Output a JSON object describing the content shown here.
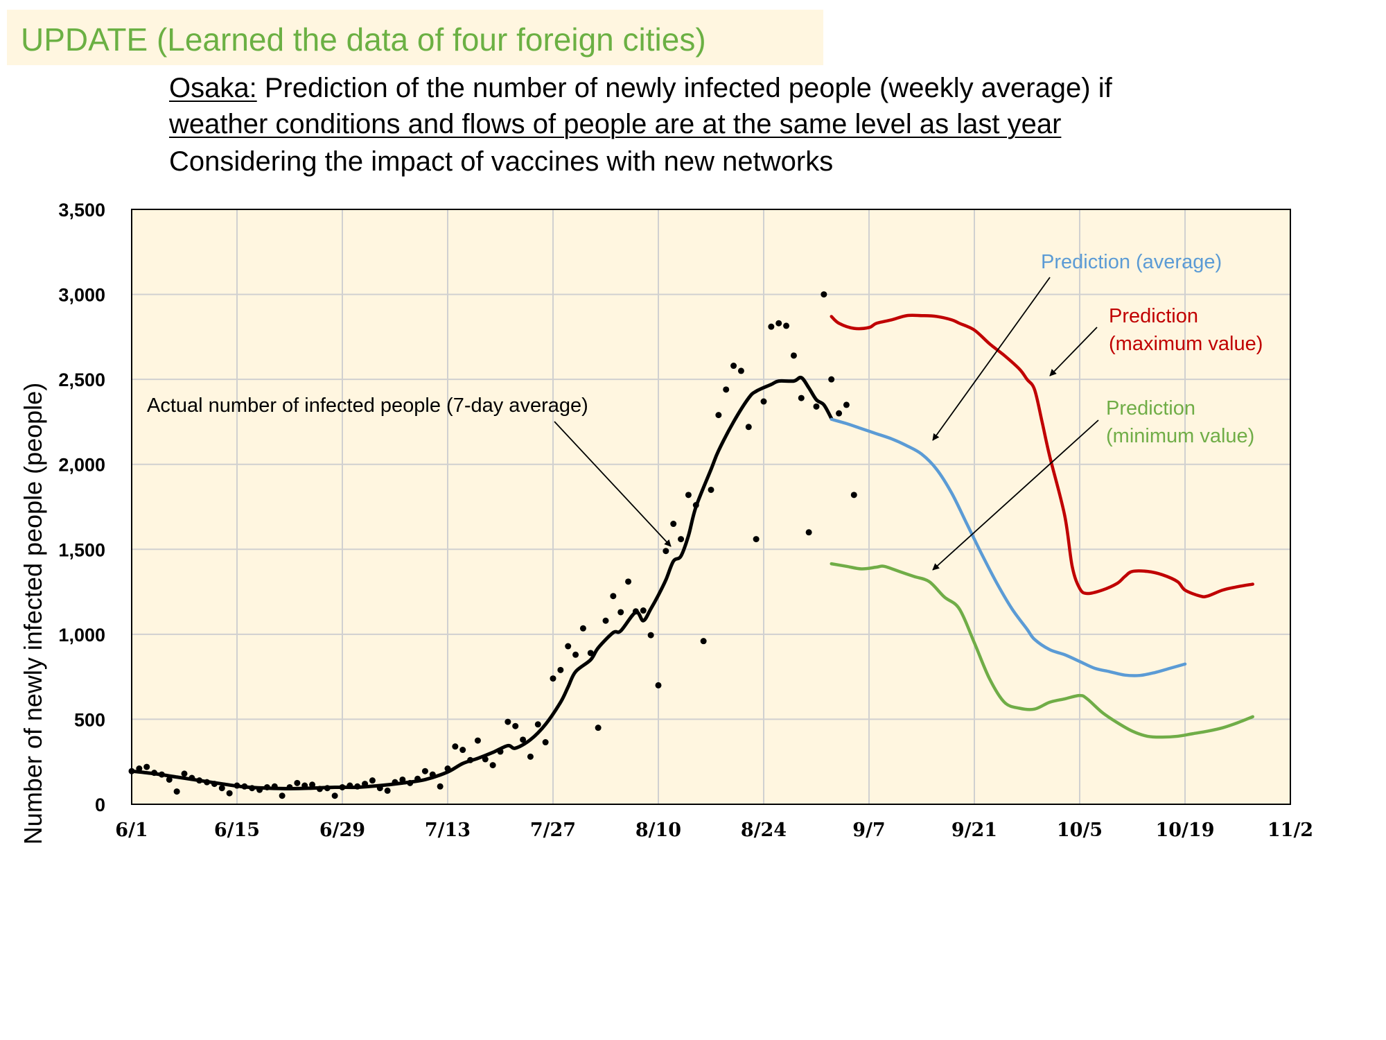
{
  "banner": {
    "text": "UPDATE (Learned the data of four foreign cities)"
  },
  "subtitle": {
    "line1_prefix": "Osaka:",
    "line1_rest": " Prediction of the number of newly infected people (weekly average) if",
    "line2": "weather conditions and flows of people are at the same level as last year",
    "line3": "Considering the impact of vaccines with new networks"
  },
  "colors": {
    "actual": "#000000",
    "average": "#5b9bd5",
    "maximum": "#c00000",
    "minimum": "#70ad47",
    "plot_bg": "#fff6e0",
    "grid": "#d0d0d0"
  },
  "chart_data": {
    "type": "line",
    "x_ticks": [
      "6/1",
      "6/15",
      "6/29",
      "7/13",
      "7/27",
      "8/10",
      "8/24",
      "9/7",
      "9/21",
      "10/5",
      "10/19",
      "11/2"
    ],
    "y_ticks": [
      "0",
      "500",
      "1,000",
      "1,500",
      "2,000",
      "2,500",
      "3,000",
      "3,500"
    ],
    "ylabel": "Number of newly infected people (people)",
    "xlim_days": [
      0,
      154
    ],
    "ylim": [
      0,
      3500
    ],
    "grid": true,
    "annotations": [
      {
        "text": "Actual number of infected people (7-day average)",
        "series": "actual"
      },
      {
        "text": "Prediction (average)",
        "series": "average"
      },
      {
        "text": [
          "Prediction",
          "(maximum value)"
        ],
        "series": "maximum"
      },
      {
        "text": [
          "Prediction",
          "(minimum value)"
        ],
        "series": "minimum"
      }
    ],
    "daily_points": [
      [
        0,
        195
      ],
      [
        1,
        210
      ],
      [
        2,
        220
      ],
      [
        3,
        185
      ],
      [
        4,
        175
      ],
      [
        5,
        145
      ],
      [
        6,
        75
      ],
      [
        7,
        180
      ],
      [
        8,
        155
      ],
      [
        9,
        140
      ],
      [
        10,
        130
      ],
      [
        11,
        120
      ],
      [
        12,
        95
      ],
      [
        13,
        65
      ],
      [
        14,
        110
      ],
      [
        15,
        105
      ],
      [
        16,
        95
      ],
      [
        17,
        85
      ],
      [
        18,
        100
      ],
      [
        19,
        105
      ],
      [
        20,
        50
      ],
      [
        21,
        100
      ],
      [
        22,
        125
      ],
      [
        23,
        110
      ],
      [
        24,
        115
      ],
      [
        25,
        90
      ],
      [
        26,
        95
      ],
      [
        27,
        50
      ],
      [
        28,
        100
      ],
      [
        29,
        110
      ],
      [
        30,
        105
      ],
      [
        31,
        120
      ],
      [
        32,
        140
      ],
      [
        33,
        95
      ],
      [
        34,
        80
      ],
      [
        35,
        130
      ],
      [
        36,
        145
      ],
      [
        37,
        125
      ],
      [
        38,
        150
      ],
      [
        39,
        195
      ],
      [
        40,
        175
      ],
      [
        41,
        105
      ],
      [
        42,
        210
      ],
      [
        43,
        340
      ],
      [
        44,
        320
      ],
      [
        45,
        260
      ],
      [
        46,
        375
      ],
      [
        47,
        265
      ],
      [
        48,
        230
      ],
      [
        49,
        310
      ],
      [
        50,
        485
      ],
      [
        51,
        460
      ],
      [
        52,
        380
      ],
      [
        53,
        280
      ],
      [
        54,
        470
      ],
      [
        55,
        365
      ],
      [
        56,
        740
      ],
      [
        57,
        790
      ],
      [
        58,
        930
      ],
      [
        59,
        880
      ],
      [
        60,
        1035
      ],
      [
        61,
        890
      ],
      [
        62,
        450
      ],
      [
        63,
        1080
      ],
      [
        64,
        1225
      ],
      [
        65,
        1130
      ],
      [
        66,
        1310
      ],
      [
        67,
        1135
      ],
      [
        68,
        1140
      ],
      [
        69,
        995
      ],
      [
        70,
        700
      ],
      [
        71,
        1490
      ],
      [
        72,
        1650
      ],
      [
        73,
        1560
      ],
      [
        74,
        1820
      ],
      [
        75,
        1760
      ],
      [
        76,
        960
      ],
      [
        77,
        1850
      ],
      [
        78,
        2290
      ],
      [
        79,
        2440
      ],
      [
        80,
        2580
      ],
      [
        81,
        2550
      ],
      [
        82,
        2220
      ],
      [
        83,
        1560
      ],
      [
        84,
        2370
      ],
      [
        85,
        2810
      ],
      [
        86,
        2830
      ],
      [
        87,
        2815
      ],
      [
        88,
        2640
      ],
      [
        89,
        2390
      ],
      [
        90,
        1600
      ],
      [
        91,
        2340
      ],
      [
        92,
        3000
      ],
      [
        93,
        2500
      ],
      [
        94,
        2300
      ],
      [
        95,
        2350
      ],
      [
        96,
        1820
      ]
    ],
    "series": [
      {
        "key": "actual",
        "points": [
          [
            0,
            195
          ],
          [
            3,
            180
          ],
          [
            6,
            160
          ],
          [
            9,
            140
          ],
          [
            12,
            120
          ],
          [
            15,
            102
          ],
          [
            18,
            95
          ],
          [
            21,
            92
          ],
          [
            24,
            95
          ],
          [
            27,
            100
          ],
          [
            30,
            100
          ],
          [
            33,
            110
          ],
          [
            36,
            125
          ],
          [
            39,
            145
          ],
          [
            42,
            190
          ],
          [
            44,
            240
          ],
          [
            46,
            270
          ],
          [
            48,
            305
          ],
          [
            50,
            345
          ],
          [
            51,
            330
          ],
          [
            53,
            380
          ],
          [
            55,
            470
          ],
          [
            57,
            600
          ],
          [
            58,
            690
          ],
          [
            59,
            780
          ],
          [
            61,
            850
          ],
          [
            62,
            920
          ],
          [
            64,
            1010
          ],
          [
            65,
            1020
          ],
          [
            67,
            1130
          ],
          [
            68,
            1080
          ],
          [
            69,
            1150
          ],
          [
            70,
            1230
          ],
          [
            71,
            1320
          ],
          [
            72,
            1430
          ],
          [
            73,
            1460
          ],
          [
            74,
            1580
          ],
          [
            75,
            1750
          ],
          [
            77,
            1970
          ],
          [
            78,
            2080
          ],
          [
            80,
            2250
          ],
          [
            82,
            2390
          ],
          [
            83,
            2430
          ],
          [
            85,
            2470
          ],
          [
            86,
            2490
          ],
          [
            88,
            2490
          ],
          [
            89,
            2510
          ],
          [
            90,
            2450
          ],
          [
            91,
            2380
          ],
          [
            92,
            2350
          ],
          [
            93,
            2270
          ]
        ]
      },
      {
        "key": "average",
        "points": [
          [
            93,
            2265
          ],
          [
            95,
            2240
          ],
          [
            97,
            2210
          ],
          [
            99,
            2180
          ],
          [
            101,
            2150
          ],
          [
            103,
            2110
          ],
          [
            105,
            2060
          ],
          [
            107,
            1970
          ],
          [
            109,
            1830
          ],
          [
            111,
            1650
          ],
          [
            113,
            1470
          ],
          [
            115,
            1300
          ],
          [
            117,
            1150
          ],
          [
            119,
            1030
          ],
          [
            120,
            970
          ],
          [
            122,
            910
          ],
          [
            124,
            880
          ],
          [
            126,
            840
          ],
          [
            128,
            800
          ],
          [
            130,
            780
          ],
          [
            132,
            760
          ],
          [
            134,
            758
          ],
          [
            136,
            775
          ],
          [
            138,
            800
          ],
          [
            140,
            825
          ]
        ]
      },
      {
        "key": "maximum",
        "points": [
          [
            93,
            2870
          ],
          [
            94,
            2830
          ],
          [
            96,
            2800
          ],
          [
            98,
            2805
          ],
          [
            99,
            2830
          ],
          [
            101,
            2850
          ],
          [
            103,
            2875
          ],
          [
            105,
            2875
          ],
          [
            107,
            2870
          ],
          [
            109,
            2850
          ],
          [
            110,
            2830
          ],
          [
            112,
            2790
          ],
          [
            114,
            2710
          ],
          [
            116,
            2640
          ],
          [
            118,
            2560
          ],
          [
            119,
            2500
          ],
          [
            120,
            2440
          ],
          [
            121,
            2250
          ],
          [
            122,
            2050
          ],
          [
            124,
            1700
          ],
          [
            125,
            1400
          ],
          [
            126,
            1270
          ],
          [
            127,
            1240
          ],
          [
            129,
            1260
          ],
          [
            131,
            1300
          ],
          [
            132,
            1340
          ],
          [
            133,
            1370
          ],
          [
            135,
            1370
          ],
          [
            137,
            1350
          ],
          [
            139,
            1310
          ],
          [
            140,
            1260
          ],
          [
            142,
            1225
          ],
          [
            143,
            1225
          ],
          [
            145,
            1260
          ],
          [
            147,
            1280
          ],
          [
            149,
            1295
          ]
        ]
      },
      {
        "key": "minimum",
        "points": [
          [
            93,
            1415
          ],
          [
            95,
            1400
          ],
          [
            97,
            1385
          ],
          [
            99,
            1395
          ],
          [
            100,
            1400
          ],
          [
            102,
            1370
          ],
          [
            104,
            1340
          ],
          [
            106,
            1310
          ],
          [
            108,
            1220
          ],
          [
            110,
            1150
          ],
          [
            112,
            950
          ],
          [
            114,
            740
          ],
          [
            116,
            600
          ],
          [
            118,
            565
          ],
          [
            120,
            560
          ],
          [
            122,
            600
          ],
          [
            124,
            620
          ],
          [
            126,
            640
          ],
          [
            127,
            620
          ],
          [
            129,
            540
          ],
          [
            131,
            480
          ],
          [
            133,
            430
          ],
          [
            135,
            400
          ],
          [
            137,
            395
          ],
          [
            139,
            400
          ],
          [
            141,
            415
          ],
          [
            143,
            430
          ],
          [
            145,
            450
          ],
          [
            147,
            480
          ],
          [
            149,
            515
          ]
        ]
      }
    ]
  }
}
